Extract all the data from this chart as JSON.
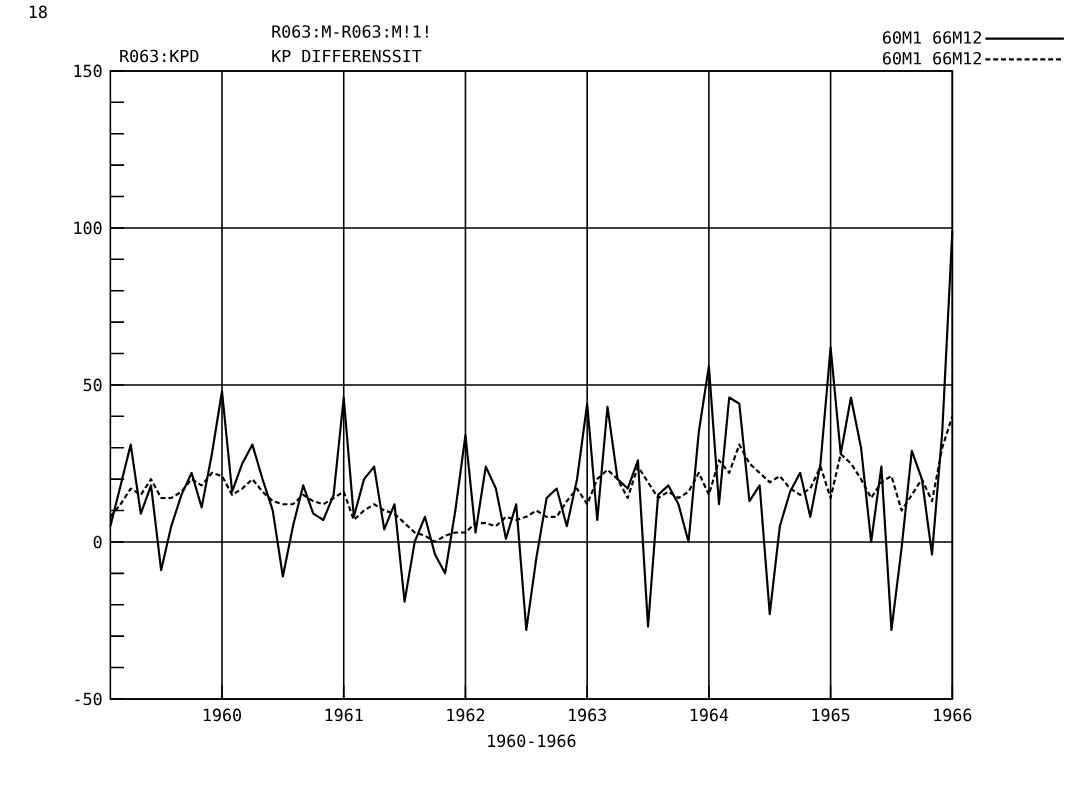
{
  "chart_data": {
    "type": "line",
    "title": "R063:M-R063:M!1!",
    "subtitle": "KP DIFFERENSSIT",
    "ylabel": "R063:KPD",
    "xlabel": "1960-1966",
    "annotations": [
      "18"
    ],
    "x": [
      1959.083,
      1959.167,
      1959.25,
      1959.333,
      1959.417,
      1959.5,
      1959.583,
      1959.667,
      1959.75,
      1959.833,
      1959.917,
      1960,
      1960.083,
      1960.167,
      1960.25,
      1960.333,
      1960.417,
      1960.5,
      1960.583,
      1960.667,
      1960.75,
      1960.833,
      1960.917,
      1961,
      1961.083,
      1961.167,
      1961.25,
      1961.333,
      1961.417,
      1961.5,
      1961.583,
      1961.667,
      1961.75,
      1961.833,
      1961.917,
      1962,
      1962.083,
      1962.167,
      1962.25,
      1962.333,
      1962.417,
      1962.5,
      1962.583,
      1962.667,
      1962.75,
      1962.833,
      1962.917,
      1963,
      1963.083,
      1963.167,
      1963.25,
      1963.333,
      1963.417,
      1963.5,
      1963.583,
      1963.667,
      1963.75,
      1963.833,
      1963.917,
      1964,
      1964.083,
      1964.167,
      1964.25,
      1964.333,
      1964.417,
      1964.5,
      1964.583,
      1964.667,
      1964.75,
      1964.833,
      1964.917,
      1965,
      1965.083,
      1965.167,
      1965.25,
      1965.333,
      1965.417,
      1965.5,
      1965.583,
      1965.667,
      1965.75,
      1965.833,
      1965.917,
      1966
    ],
    "series": [
      {
        "name": "60M1  66M12",
        "color": "#000000",
        "line_style": "solid",
        "values": [
          5,
          18,
          31,
          9,
          18,
          -9,
          5,
          15,
          22,
          11,
          28,
          48,
          16,
          25,
          31,
          20,
          10,
          -11,
          5,
          18,
          9,
          7,
          15,
          46,
          8,
          20,
          24,
          4,
          12,
          -19,
          0,
          8,
          -4,
          -10,
          10,
          34,
          3,
          24,
          17,
          1,
          12,
          -28,
          -5,
          14,
          17,
          5,
          20,
          44,
          7,
          43,
          20,
          17,
          26,
          -27,
          15,
          18,
          12,
          0,
          35,
          56,
          12,
          46,
          44,
          13,
          18,
          -23,
          5,
          16,
          22,
          8,
          25,
          62,
          28,
          46,
          30,
          0,
          24,
          -28,
          -2,
          29,
          20,
          -4,
          35,
          99
        ]
      },
      {
        "name": "60M1  66M12",
        "color": "#000000",
        "line_style": "dashed",
        "values": [
          8,
          12,
          17,
          15,
          20,
          14,
          14,
          16,
          20,
          18,
          22,
          21,
          15,
          17,
          20,
          16,
          13,
          12,
          12,
          15,
          13,
          12,
          14,
          16,
          7,
          10,
          12,
          10,
          9,
          6,
          3,
          2,
          0,
          2,
          3,
          3,
          6,
          6,
          5,
          8,
          7,
          8,
          10,
          8,
          8,
          13,
          17,
          12,
          20,
          23,
          20,
          14,
          24,
          19,
          14,
          16,
          14,
          16,
          22,
          15,
          26,
          22,
          31,
          25,
          22,
          19,
          21,
          17,
          15,
          17,
          24,
          14,
          28,
          25,
          20,
          14,
          19,
          21,
          10,
          15,
          20,
          13,
          30,
          40
        ]
      }
    ],
    "xlim": [
      1959.083,
      1966
    ],
    "xticks": [
      1960,
      1961,
      1962,
      1963,
      1964,
      1965,
      1966
    ],
    "ylim": [
      -50,
      150
    ],
    "yticks": [
      -50,
      {
        "value": -40,
        "label": null
      },
      {
        "value": -30,
        "label": null
      },
      {
        "value": -20,
        "label": null
      },
      {
        "value": -10,
        "label": null
      },
      0,
      {
        "value": 10,
        "label": null
      },
      {
        "value": 20,
        "label": null
      },
      {
        "value": 30,
        "label": null
      },
      {
        "value": 40,
        "label": null
      },
      50,
      {
        "value": 60,
        "label": null
      },
      {
        "value": 70,
        "label": null
      },
      {
        "value": 80,
        "label": null
      },
      {
        "value": 90,
        "label": null
      },
      100,
      {
        "value": 110,
        "label": null
      },
      {
        "value": 120,
        "label": null
      },
      {
        "value": 130,
        "label": null
      },
      {
        "value": 140,
        "label": null
      },
      150
    ],
    "grid": true,
    "legend": "top right",
    "marker": "none"
  }
}
